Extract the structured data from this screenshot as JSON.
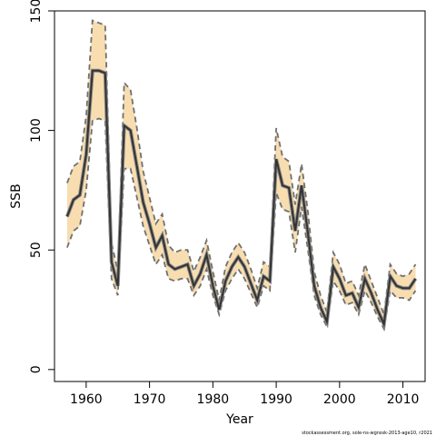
{
  "chart_data": {
    "type": "area",
    "title": "",
    "xlabel": "Year",
    "ylabel": "SSB",
    "xlim": [
      1955,
      2013.5
    ],
    "ylim": [
      -5,
      150
    ],
    "xticks": [
      1960,
      1970,
      1980,
      1990,
      2000,
      2010
    ],
    "yticks": [
      0,
      50,
      100,
      150
    ],
    "xtick_labels": [
      "1960",
      "1970",
      "1980",
      "1990",
      "2000",
      "2010"
    ],
    "ytick_labels": [
      "0",
      "50",
      "100",
      "150"
    ],
    "grid": false,
    "legend": "none",
    "source_note": "stockassessment.org, sole-ns-wgnssk-2013-age10, r2021",
    "colors": {
      "band_fill": "#f7ddb0",
      "band_edge": "#707070",
      "line": "#333333"
    },
    "series": [
      {
        "x": [
          1957,
          1958,
          1959,
          1960,
          1961,
          1962,
          1963,
          1964,
          1965,
          1966,
          1967,
          1968,
          1969,
          1970,
          1971,
          1972,
          1973,
          1974,
          1975,
          1976,
          1977,
          1978,
          1979,
          1980,
          1981,
          1982,
          1983,
          1984,
          1985,
          1986,
          1987,
          1988,
          1989,
          1990,
          1991,
          1992,
          1993,
          1994,
          1995,
          1996,
          1997,
          1998,
          1999,
          2000,
          2001,
          2002,
          2003,
          2004,
          2005,
          2006,
          2007,
          2008,
          2009,
          2010,
          2011,
          2012
        ],
        "estimate": [
          64,
          71,
          73,
          90,
          125,
          125,
          124,
          45,
          35,
          102,
          100,
          85,
          70,
          61,
          51,
          56,
          44,
          42,
          43,
          44,
          35,
          40,
          48,
          35,
          25,
          37,
          43,
          47,
          43,
          36,
          29,
          39,
          37,
          88,
          77,
          76,
          58,
          77,
          57,
          35,
          26,
          20,
          43,
          38,
          31,
          32,
          26,
          38,
          32,
          25,
          19,
          39,
          35,
          34,
          34,
          38
        ],
        "lower": [
          51,
          58,
          60,
          75,
          104,
          105,
          104,
          38,
          31,
          84,
          84,
          72,
          60,
          52,
          44,
          48,
          38,
          37,
          38,
          38,
          31,
          35,
          42,
          31,
          23,
          33,
          38,
          42,
          38,
          32,
          26,
          35,
          33,
          74,
          67,
          66,
          49,
          68,
          50,
          31,
          23,
          18,
          37,
          33,
          27,
          28,
          23,
          33,
          28,
          22,
          17,
          33,
          30,
          30,
          29,
          33
        ],
        "upper": [
          78,
          85,
          87,
          106,
          146,
          145,
          144,
          53,
          41,
          120,
          117,
          101,
          83,
          72,
          61,
          65,
          52,
          49,
          50,
          50,
          41,
          47,
          54,
          41,
          29,
          43,
          49,
          53,
          49,
          42,
          34,
          45,
          43,
          101,
          89,
          87,
          69,
          86,
          66,
          41,
          31,
          24,
          49,
          44,
          36,
          37,
          31,
          44,
          37,
          30,
          23,
          44,
          40,
          39,
          40,
          44
        ]
      }
    ]
  }
}
